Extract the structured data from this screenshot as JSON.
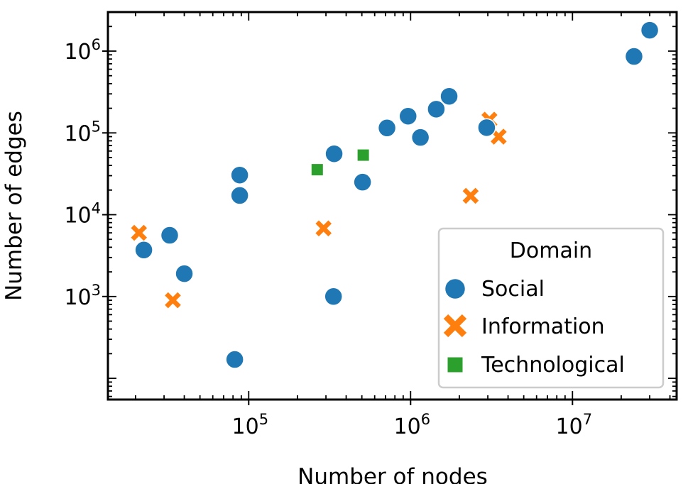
{
  "chart_data": {
    "type": "scatter",
    "xlabel": "Number of nodes",
    "ylabel": "Number of edges",
    "xscale": "log",
    "yscale": "log",
    "xlim": [
      13500,
      44000000
    ],
    "ylim": [
      55,
      3000000
    ],
    "xticks": [
      {
        "value": 100000,
        "base": "10",
        "exp": "5"
      },
      {
        "value": 1000000,
        "base": "10",
        "exp": "6"
      },
      {
        "value": 10000000,
        "base": "10",
        "exp": "7"
      }
    ],
    "yticks": [
      {
        "value": 1000,
        "base": "10",
        "exp": "3"
      },
      {
        "value": 10000,
        "base": "10",
        "exp": "4"
      },
      {
        "value": 100000,
        "base": "10",
        "exp": "5"
      },
      {
        "value": 1000000,
        "base": "10",
        "exp": "6"
      }
    ],
    "grid": false,
    "legend": {
      "title": "Domain",
      "placement": "lower-right"
    },
    "series": [
      {
        "name": "Social",
        "marker": "circle",
        "color": "#1f77b4",
        "points": [
          {
            "x": 22500,
            "y": 3700
          },
          {
            "x": 32500,
            "y": 5600
          },
          {
            "x": 40000,
            "y": 1900
          },
          {
            "x": 82000,
            "y": 170
          },
          {
            "x": 88000,
            "y": 30500
          },
          {
            "x": 88000,
            "y": 17200
          },
          {
            "x": 337000,
            "y": 55500
          },
          {
            "x": 334000,
            "y": 1000
          },
          {
            "x": 505000,
            "y": 25000
          },
          {
            "x": 715000,
            "y": 115000
          },
          {
            "x": 965000,
            "y": 160000
          },
          {
            "x": 1150000,
            "y": 88000
          },
          {
            "x": 1440000,
            "y": 195000
          },
          {
            "x": 1730000,
            "y": 280000
          },
          {
            "x": 2950000,
            "y": 116000
          },
          {
            "x": 24000000,
            "y": 860000
          },
          {
            "x": 30000000,
            "y": 1800000
          }
        ]
      },
      {
        "name": "Information",
        "marker": "x",
        "color": "#ff7f0e",
        "points": [
          {
            "x": 21000,
            "y": 6000
          },
          {
            "x": 34000,
            "y": 900
          },
          {
            "x": 290000,
            "y": 6800
          },
          {
            "x": 2350000,
            "y": 17000
          },
          {
            "x": 3070000,
            "y": 145000
          },
          {
            "x": 3500000,
            "y": 90000
          }
        ]
      },
      {
        "name": "Technological",
        "marker": "square",
        "color": "#2ca02c",
        "points": [
          {
            "x": 265000,
            "y": 35500
          },
          {
            "x": 510000,
            "y": 53500
          }
        ]
      }
    ]
  }
}
